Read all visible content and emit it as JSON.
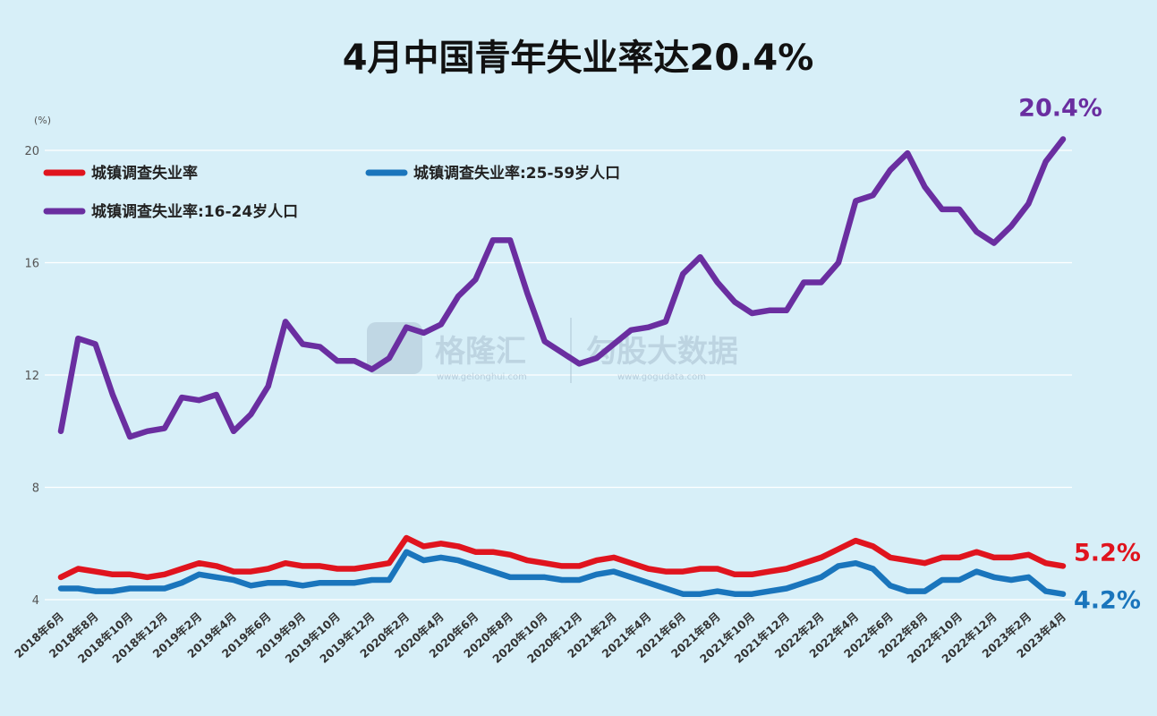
{
  "chart_data": {
    "type": "line",
    "title": "4月中国青年失业率达20.4%",
    "ylabel": "(%)",
    "ylim": [
      4,
      20.4
    ],
    "yticks": [
      4,
      8,
      12,
      16,
      20
    ],
    "grid": true,
    "legend_position": "top-left",
    "x": [
      "2018年6月",
      "2018年7月",
      "2018年8月",
      "2018年9月",
      "2018年10月",
      "2018年11月",
      "2018年12月",
      "2019年1月",
      "2019年2月",
      "2019年3月",
      "2019年4月",
      "2019年5月",
      "2019年6月",
      "2019年7月",
      "2019年8月",
      "2019年9月",
      "2019年10月",
      "2019年11月",
      "2019年12月",
      "2020年1月",
      "2020年2月",
      "2020年3月",
      "2020年4月",
      "2020年5月",
      "2020年6月",
      "2020年7月",
      "2020年8月",
      "2020年9月",
      "2020年10月",
      "2020年11月",
      "2020年12月",
      "2021年1月",
      "2021年2月",
      "2021年3月",
      "2021年4月",
      "2021年5月",
      "2021年6月",
      "2021年7月",
      "2021年8月",
      "2021年9月",
      "2021年10月",
      "2021年11月",
      "2021年12月",
      "2022年1月",
      "2022年2月",
      "2022年3月",
      "2022年4月",
      "2022年5月",
      "2022年6月",
      "2022年7月",
      "2022年8月",
      "2022年9月",
      "2022年10月",
      "2022年11月",
      "2022年12月",
      "2023年1月",
      "2023年2月",
      "2023年3月",
      "2023年4月"
    ],
    "xtick_labels": [
      "2018年6月",
      "2018年8月",
      "2018年10月",
      "2018年12月",
      "2019年2月",
      "2019年4月",
      "2019年6月",
      "2019年9月",
      "2019年10月",
      "2019年12月",
      "2020年2月",
      "2020年4月",
      "2020年6月",
      "2020年8月",
      "2020年10月",
      "2020年12月",
      "2021年2月",
      "2021年4月",
      "2021年6月",
      "2021年8月",
      "2021年10月",
      "2021年12月",
      "2022年2月",
      "2022年4月",
      "2022年6月",
      "2022年8月",
      "2022年10月",
      "2022年12月",
      "2023年2月",
      "2023年4月"
    ],
    "series": [
      {
        "name": "城镇调查失业率",
        "color": "#e0141e",
        "values": [
          4.8,
          5.1,
          5.0,
          4.9,
          4.9,
          4.8,
          4.9,
          5.1,
          5.3,
          5.2,
          5.0,
          5.0,
          5.1,
          5.3,
          5.2,
          5.2,
          5.1,
          5.1,
          5.2,
          5.3,
          6.2,
          5.9,
          6.0,
          5.9,
          5.7,
          5.7,
          5.6,
          5.4,
          5.3,
          5.2,
          5.2,
          5.4,
          5.5,
          5.3,
          5.1,
          5.0,
          5.0,
          5.1,
          5.1,
          4.9,
          4.9,
          5.0,
          5.1,
          5.3,
          5.5,
          5.8,
          6.1,
          5.9,
          5.5,
          5.4,
          5.3,
          5.5,
          5.5,
          5.7,
          5.5,
          5.5,
          5.6,
          5.3,
          5.2
        ],
        "end_label": "5.2%"
      },
      {
        "name": "城镇调查失业率:25-59岁人口",
        "color": "#1a75bc",
        "values": [
          4.4,
          4.4,
          4.3,
          4.3,
          4.4,
          4.4,
          4.4,
          4.6,
          4.9,
          4.8,
          4.7,
          4.5,
          4.6,
          4.6,
          4.5,
          4.6,
          4.6,
          4.6,
          4.7,
          4.7,
          5.7,
          5.4,
          5.5,
          5.4,
          5.2,
          5.0,
          4.8,
          4.8,
          4.8,
          4.7,
          4.7,
          4.9,
          5.0,
          4.8,
          4.6,
          4.4,
          4.2,
          4.2,
          4.3,
          4.2,
          4.2,
          4.3,
          4.4,
          4.6,
          4.8,
          5.2,
          5.3,
          5.1,
          4.5,
          4.3,
          4.3,
          4.7,
          4.7,
          5.0,
          4.8,
          4.7,
          4.8,
          4.3,
          4.2
        ],
        "end_label": "4.2%"
      },
      {
        "name": "城镇调查失业率:16-24岁人口",
        "color": "#6a2ea0",
        "values": [
          10.0,
          13.3,
          13.1,
          11.3,
          9.8,
          10.0,
          10.1,
          11.2,
          11.1,
          11.3,
          10.0,
          10.6,
          11.6,
          13.9,
          13.1,
          13.0,
          12.5,
          12.5,
          12.2,
          12.6,
          13.7,
          13.5,
          13.8,
          14.8,
          15.4,
          16.8,
          16.8,
          14.9,
          13.2,
          12.8,
          12.4,
          12.6,
          13.1,
          13.6,
          13.7,
          13.9,
          15.6,
          16.2,
          15.3,
          14.6,
          14.2,
          14.3,
          14.3,
          15.3,
          15.3,
          16.0,
          18.2,
          18.4,
          19.3,
          19.9,
          18.7,
          17.9,
          17.9,
          17.1,
          16.7,
          17.3,
          18.1,
          19.6,
          20.4
        ],
        "end_label": "20.4%"
      }
    ]
  },
  "watermark": {
    "left_name": "格隆汇",
    "left_url": "www.gelonghui.com",
    "right_name": "勾股大数据",
    "right_url": "www.gogudata.com"
  }
}
